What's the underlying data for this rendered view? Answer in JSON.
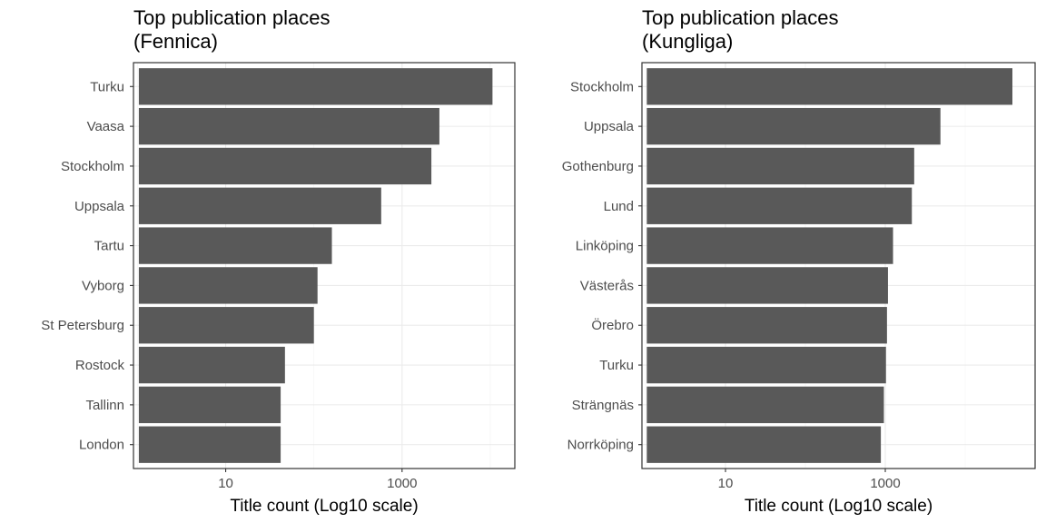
{
  "chart_data": [
    {
      "type": "bar",
      "orientation": "horizontal",
      "title": "Top publication places\n(Fennica)",
      "xlabel": "Title count (Log10 scale)",
      "ylabel": "",
      "x_scale": "log10",
      "xlim": [
        0.9,
        19000
      ],
      "x_ticks": [
        10,
        1000
      ],
      "x_tick_labels": [
        "10",
        "1000"
      ],
      "grid": true,
      "bar_color": "#595959",
      "categories": [
        "Turku",
        "Vaasa",
        "Stockholm",
        "Uppsala",
        "Tartu",
        "Vyborg",
        "St Petersburg",
        "Rostock",
        "Tallinn",
        "London"
      ],
      "values": [
        10600,
        2650,
        2150,
        580,
        160,
        110,
        100,
        47,
        42,
        42
      ]
    },
    {
      "type": "bar",
      "orientation": "horizontal",
      "title": "Top publication places\n(Kungliga)",
      "xlabel": "Title count (Log10 scale)",
      "ylabel": "",
      "x_scale": "log10",
      "xlim": [
        0.9,
        75000
      ],
      "x_ticks": [
        10,
        1000
      ],
      "x_tick_labels": [
        "10",
        "1000"
      ],
      "grid": true,
      "bar_color": "#595959",
      "categories": [
        "Stockholm",
        "Uppsala",
        "Gothenburg",
        "Lund",
        "Linköping",
        "Västerås",
        "Örebro",
        "Turku",
        "Strängnäs",
        "Norrköping"
      ],
      "values": [
        39000,
        4900,
        2300,
        2150,
        1250,
        1080,
        1050,
        1020,
        960,
        880
      ]
    }
  ]
}
